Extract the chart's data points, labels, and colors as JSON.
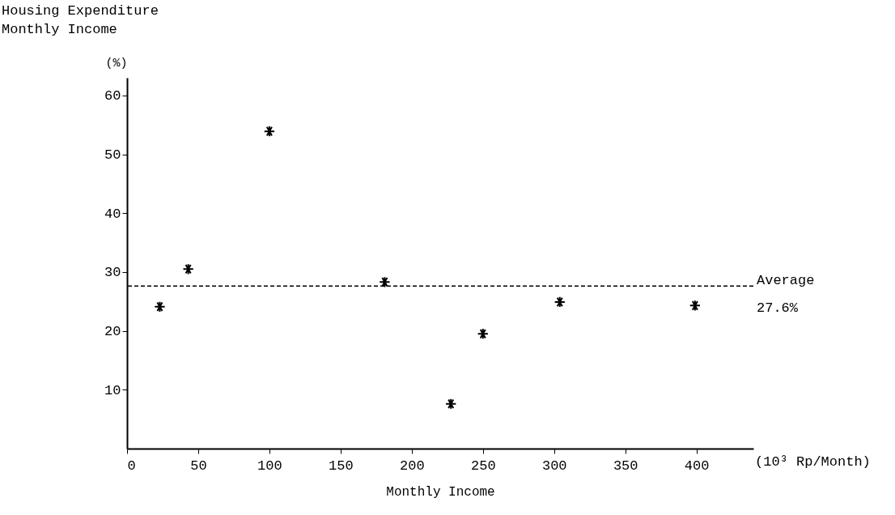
{
  "chart_data": {
    "type": "scatter",
    "title": "Housing Expenditure",
    "subtitle": "Monthly Income",
    "xlabel": "Monthly Income",
    "ylabel": "(%)",
    "x": [
      23,
      43,
      100,
      181,
      227.5,
      250,
      304,
      399
    ],
    "series": [
      {
        "color": "#000000",
        "values": [
          24.1,
          30.5,
          53.9,
          28.3,
          7.6,
          19.5,
          24.9,
          24.3
        ]
      }
    ],
    "xlim": [
      0,
      440
    ],
    "xticks": [
      0,
      50,
      100,
      150,
      200,
      250,
      300,
      350,
      400
    ],
    "ylim": [
      0,
      63
    ],
    "yticks": [
      10,
      20,
      30,
      40,
      50,
      60
    ],
    "ref_lines": [
      {
        "axis": "y",
        "value": 27.6,
        "label": "Average 27.6%",
        "line_style": "dashed",
        "color": "#000000"
      }
    ],
    "annotations": [
      "(10³ Rp/Month)"
    ],
    "marker": "cross",
    "grid": false
  }
}
